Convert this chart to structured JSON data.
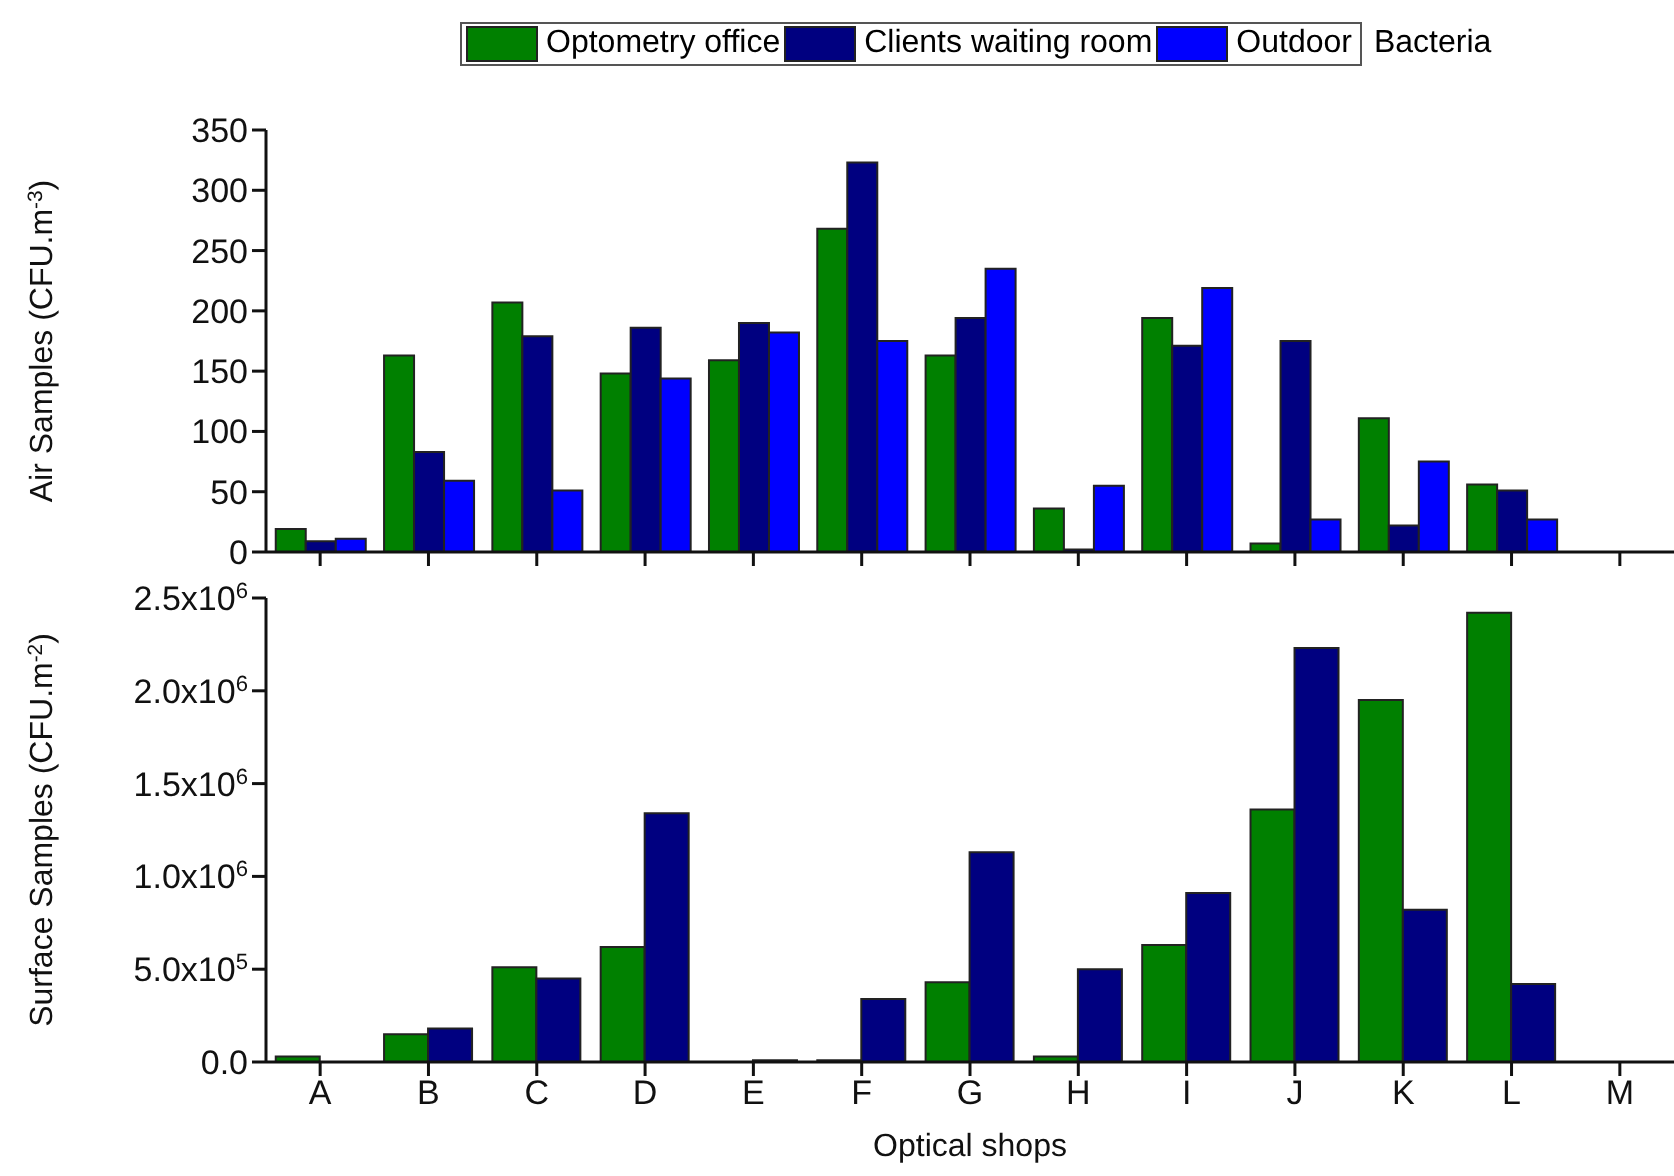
{
  "chart_data": [
    {
      "type": "bar",
      "categories": [
        null,
        null,
        null,
        null,
        null,
        null,
        null,
        null,
        null,
        null,
        null,
        null,
        null
      ],
      "ylabel": "Air Samples (CFU.m$^{-3}$)",
      "ylim": [
        0,
        350
      ],
      "yticks": [
        0,
        50,
        100,
        150,
        200,
        250,
        300,
        350
      ],
      "legend": "top",
      "legend_title": "Bacteria",
      "tick_labels": "y",
      "series": [
        {
          "name": "Optometry office",
          "color": "#008000",
          "values": [
            19,
            163,
            207,
            148,
            159,
            268,
            163,
            36,
            194,
            7,
            111,
            56,
            null
          ]
        },
        {
          "name": "Clients waiting room",
          "color": "#000080",
          "values": [
            9,
            83,
            179,
            186,
            190,
            323,
            194,
            2,
            171,
            175,
            22,
            51,
            null
          ]
        },
        {
          "name": "Outdoor",
          "color": "#0000ff",
          "values": [
            11,
            59,
            51,
            144,
            182,
            175,
            235,
            55,
            219,
            27,
            75,
            27,
            null
          ]
        }
      ]
    },
    {
      "type": "bar",
      "categories": [
        "A",
        "B",
        "C",
        "D",
        "E",
        "F",
        "G",
        "H",
        "I",
        "J",
        "K",
        "L",
        "M"
      ],
      "xlabel": "Optical shops",
      "ylabel": "Surface Samples (CFU.m$^{-2}$)",
      "ylim": [
        0,
        2500000
      ],
      "yticks": [
        {
          "value": 0,
          "label": "0.0"
        },
        {
          "value": 500000,
          "label": "5.0x10$^{5}$"
        },
        {
          "value": 1000000,
          "label": "1.0x10$^{6}$"
        },
        {
          "value": 1500000,
          "label": "1.5x10$^{6}$"
        },
        {
          "value": 2000000,
          "label": "2.0x10$^{6}$"
        },
        {
          "value": 2500000,
          "label": "2.5x10$^{6}$"
        }
      ],
      "series": [
        {
          "color": "#008000",
          "values": [
            30000,
            150000,
            510000,
            620000,
            null,
            10000,
            430000,
            30000,
            630000,
            1360000,
            1950000,
            2420000,
            null
          ]
        },
        {
          "color": "#000080",
          "values": [
            null,
            180000,
            450000,
            1340000,
            10000,
            340000,
            1130000,
            500000,
            910000,
            2230000,
            820000,
            420000,
            null
          ]
        }
      ]
    }
  ]
}
